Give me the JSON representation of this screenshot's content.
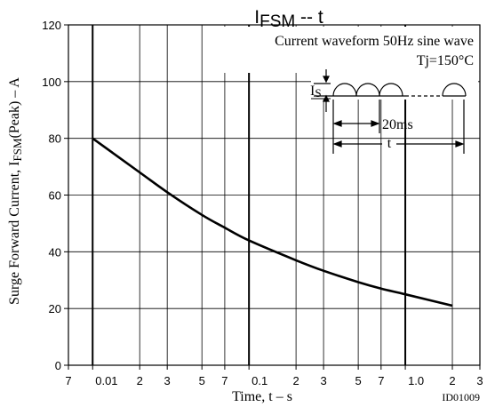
{
  "chart_data": {
    "type": "line",
    "title_main": "I",
    "title_sub": "FSM",
    "title_rest": " -- t",
    "ylabel_main": "Surge Forward Current, I",
    "ylabel_sub": "FSM",
    "ylabel_rest": "(Peak)  –  A",
    "xlabel": "Time, t  – s",
    "image_id": "ID01009",
    "annotations": {
      "line1": "Current waveform 50Hz sine wave",
      "line2": "Tj=150°C",
      "is_main": "I",
      "is_sub": "S",
      "period": "20ms",
      "duration": "t"
    },
    "xscale": "log",
    "xlim": [
      0.007,
      3.0
    ],
    "ylim": [
      0,
      120
    ],
    "x_ticks": [
      {
        "value": 0.007,
        "label": "7"
      },
      {
        "value": 0.01,
        "label": "0.01"
      },
      {
        "value": 0.02,
        "label": "2"
      },
      {
        "value": 0.03,
        "label": "3"
      },
      {
        "value": 0.05,
        "label": "5"
      },
      {
        "value": 0.07,
        "label": "7"
      },
      {
        "value": 0.1,
        "label": "0.1"
      },
      {
        "value": 0.2,
        "label": "2"
      },
      {
        "value": 0.3,
        "label": "3"
      },
      {
        "value": 0.5,
        "label": "5"
      },
      {
        "value": 0.7,
        "label": "7"
      },
      {
        "value": 1.0,
        "label": "1.0"
      },
      {
        "value": 2.0,
        "label": "2"
      },
      {
        "value": 3.0,
        "label": "3"
      }
    ],
    "y_ticks": [
      {
        "value": 0,
        "label": "0"
      },
      {
        "value": 20,
        "label": "20"
      },
      {
        "value": 40,
        "label": "40"
      },
      {
        "value": 60,
        "label": "60"
      },
      {
        "value": 80,
        "label": "80"
      },
      {
        "value": 100,
        "label": "100"
      },
      {
        "value": 120,
        "label": "120"
      }
    ],
    "grid": true,
    "series": [
      {
        "x": [
          0.01,
          0.02,
          0.03,
          0.05,
          0.07,
          0.1,
          0.2,
          0.3,
          0.5,
          0.7,
          1.0,
          2.0
        ],
        "y": [
          80,
          68,
          61,
          53,
          48.5,
          44,
          37,
          33.3,
          29.3,
          27,
          25,
          21
        ],
        "color": "#000000"
      }
    ]
  }
}
